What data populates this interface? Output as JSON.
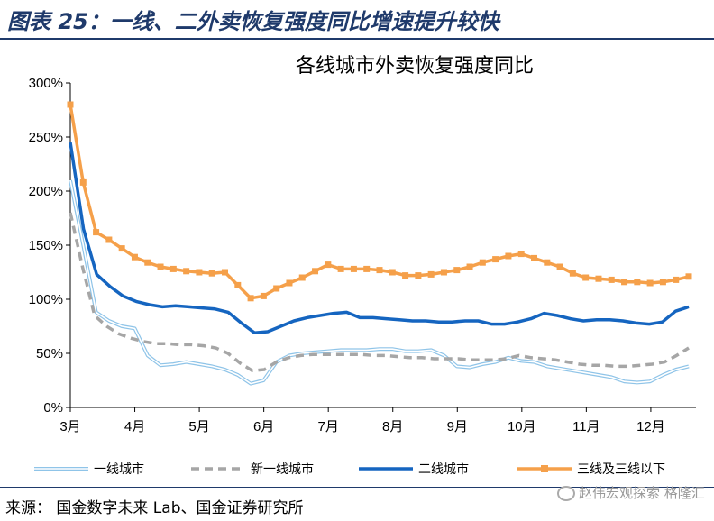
{
  "figure_title": "图表 25：一线、二外卖恢复强度同比增速提升较快",
  "source": "来源：  国金数字未来 Lab、国金证券研究所",
  "watermark": "赵伟宏观探索 格隆汇",
  "chart_data": {
    "type": "line",
    "title": "各线城市外卖恢复强度同比",
    "xlabel": "",
    "ylabel": "",
    "x_ticks": [
      "3月",
      "4月",
      "5月",
      "6月",
      "7月",
      "8月",
      "9月",
      "10月",
      "11月",
      "12月"
    ],
    "y_ticks": [
      "0%",
      "50%",
      "100%",
      "150%",
      "200%",
      "250%",
      "300%"
    ],
    "ylim": [
      0,
      300
    ],
    "grid": false,
    "legend_position": "bottom",
    "series": [
      {
        "name": "一线城市",
        "color": "#8fc4e8",
        "style": "double-thin",
        "values": [
          210,
          150,
          88,
          80,
          75,
          73,
          48,
          39,
          40,
          42,
          40,
          38,
          35,
          30,
          22,
          25,
          42,
          48,
          50,
          51,
          52,
          53,
          53,
          53,
          54,
          54,
          52,
          52,
          53,
          48,
          38,
          37,
          40,
          42,
          46,
          43,
          42,
          38,
          36,
          34,
          32,
          30,
          28,
          24,
          23,
          24,
          30,
          35,
          38
        ]
      },
      {
        "name": "新一线城市",
        "color": "#a6a6a6",
        "style": "dashed",
        "values": [
          180,
          130,
          85,
          75,
          68,
          64,
          61,
          59,
          59,
          58,
          58,
          57,
          55,
          50,
          41,
          34,
          35,
          42,
          46,
          48,
          49,
          49,
          49,
          49,
          49,
          48,
          48,
          47,
          46,
          46,
          45,
          45,
          45,
          44,
          44,
          44,
          45,
          48,
          46,
          45,
          44,
          42,
          40,
          39,
          39,
          38,
          38,
          39,
          40,
          42,
          48,
          55
        ]
      },
      {
        "name": "二线城市",
        "color": "#1565c0",
        "style": "solid",
        "values": [
          245,
          165,
          123,
          112,
          103,
          98,
          95,
          93,
          94,
          93,
          92,
          91,
          88,
          78,
          69,
          70,
          75,
          80,
          83,
          85,
          87,
          88,
          83,
          83,
          82,
          81,
          80,
          80,
          79,
          79,
          80,
          80,
          77,
          77,
          79,
          82,
          87,
          85,
          82,
          80,
          81,
          81,
          80,
          78,
          77,
          79,
          89,
          93
        ]
      },
      {
        "name": "三线及三线以下",
        "color": "#f5a04a",
        "style": "solid-square-markers",
        "values": [
          280,
          208,
          162,
          155,
          147,
          139,
          134,
          130,
          128,
          126,
          125,
          124,
          125,
          113,
          101,
          103,
          110,
          115,
          120,
          126,
          132,
          128,
          128,
          128,
          127,
          125,
          122,
          122,
          123,
          125,
          127,
          130,
          134,
          137,
          140,
          142,
          138,
          134,
          130,
          124,
          120,
          119,
          118,
          116,
          116,
          115,
          116,
          118,
          121
        ]
      }
    ]
  }
}
